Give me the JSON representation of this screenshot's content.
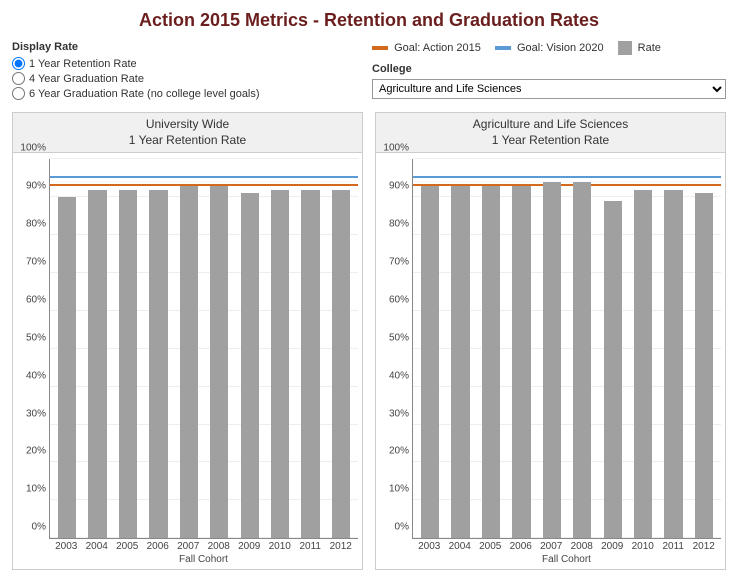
{
  "title": "Action 2015 Metrics - Retention and Graduation Rates",
  "title_color": "#6b1e1e",
  "display_rate": {
    "label": "Display Rate",
    "options": [
      {
        "label": "1 Year Retention Rate",
        "selected": true
      },
      {
        "label": "4 Year Graduation Rate",
        "selected": false
      },
      {
        "label": "6 Year Graduation Rate (no college level goals)",
        "selected": false
      }
    ]
  },
  "legend": {
    "items": [
      {
        "label": "Goal: Action 2015",
        "color": "#d2691e",
        "type": "line"
      },
      {
        "label": "Goal: Vision 2020",
        "color": "#5b9bd5",
        "type": "line"
      },
      {
        "label": "Rate",
        "color": "#a0a0a0",
        "type": "box"
      }
    ]
  },
  "college": {
    "label": "College",
    "selected": "Agriculture and Life Sciences"
  },
  "charts": {
    "ylim": [
      0,
      100
    ],
    "ytick_step": 10,
    "y_suffix": "%",
    "x_title": "Fall Cohort",
    "categories": [
      "2003",
      "2004",
      "2005",
      "2006",
      "2007",
      "2008",
      "2009",
      "2010",
      "2011",
      "2012"
    ],
    "bar_color": "#a0a0a0",
    "grid_color": "#eeeeee",
    "panels": [
      {
        "title_line1": "University Wide",
        "title_line2": "1 Year Retention Rate",
        "goal_action2015": 93,
        "goal_vision2020": 95,
        "values": [
          90,
          92,
          92,
          92,
          93,
          93,
          91,
          92,
          92,
          92
        ]
      },
      {
        "title_line1": "Agriculture and Life Sciences",
        "title_line2": "1 Year Retention Rate",
        "goal_action2015": 93,
        "goal_vision2020": 95,
        "values": [
          93,
          93,
          93,
          93,
          94,
          94,
          89,
          92,
          92,
          91
        ]
      }
    ]
  }
}
